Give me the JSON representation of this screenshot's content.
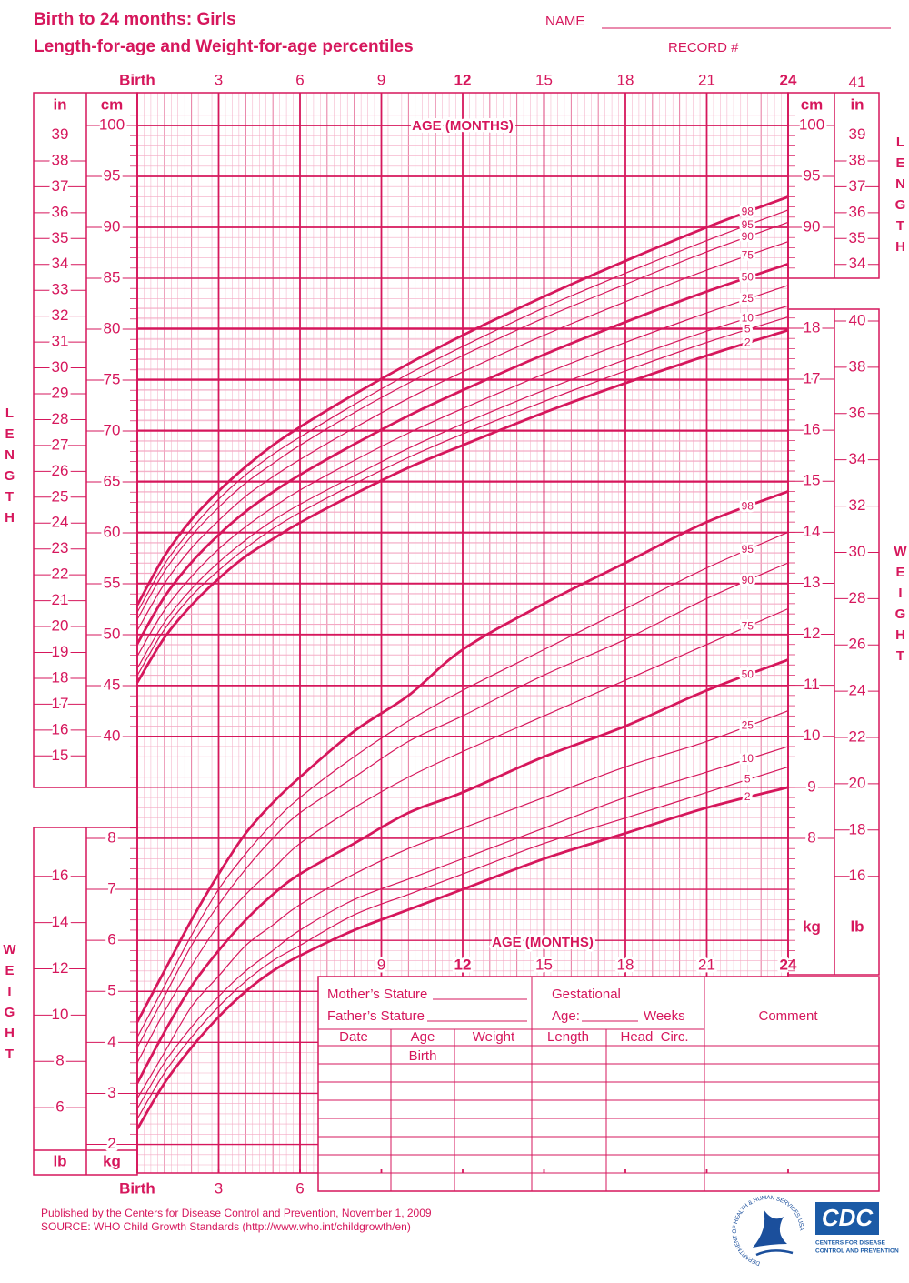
{
  "header": {
    "title": "Birth to 24 months: Girls",
    "subtitle": "Length-for-age and Weight-for-age percentiles",
    "name_label": "NAME",
    "record_label": "RECORD #"
  },
  "chart_data": [
    {
      "type": "line",
      "label": "LENGTH",
      "x_label": "AGE (MONTHS)",
      "y_unit": "cm",
      "y2_unit": "in",
      "color": "#d6175c",
      "x": [
        0,
        1,
        2,
        3,
        4,
        5,
        6,
        8,
        10,
        12,
        15,
        18,
        21,
        24
      ],
      "xlim": [
        0,
        24
      ],
      "xticks": [
        {
          "value": 0,
          "label": "Birth"
        },
        3,
        6,
        9,
        12,
        15,
        18,
        21,
        24
      ],
      "ylim": [
        35,
        103
      ],
      "yticks": [
        40,
        45,
        50,
        55,
        60,
        65,
        70,
        75,
        80,
        85,
        90,
        95,
        100
      ],
      "yticks_right": [
        90,
        95,
        100
      ],
      "y2lim": [
        13.78,
        40.55
      ],
      "y2ticks": [
        15,
        16,
        17,
        18,
        19,
        20,
        21,
        22,
        23,
        24,
        25,
        26,
        27,
        28,
        29,
        30,
        31,
        32,
        33,
        34,
        35,
        36,
        37,
        38,
        39
      ],
      "y2ticks_right": [
        34,
        35,
        36,
        37,
        38,
        39,
        41
      ],
      "series": [
        {
          "name": "98",
          "bold": true,
          "values": [
            52.9,
            57.7,
            61.3,
            64.1,
            66.5,
            68.6,
            70.4,
            73.6,
            76.6,
            79.4,
            83.2,
            86.7,
            90.0,
            93.0
          ]
        },
        {
          "name": "95",
          "bold": false,
          "values": [
            52.2,
            56.9,
            60.4,
            63.3,
            65.7,
            67.7,
            69.4,
            72.6,
            75.6,
            78.3,
            82.1,
            85.5,
            88.7,
            91.7
          ]
        },
        {
          "name": "90",
          "bold": false,
          "values": [
            51.5,
            56.2,
            59.7,
            62.5,
            64.9,
            66.8,
            68.6,
            71.8,
            74.7,
            77.4,
            81.1,
            84.4,
            87.6,
            90.5
          ]
        },
        {
          "name": "75",
          "bold": false,
          "values": [
            50.4,
            55.0,
            58.5,
            61.2,
            63.6,
            65.5,
            67.2,
            70.3,
            73.2,
            75.8,
            79.4,
            82.7,
            85.8,
            88.6
          ]
        },
        {
          "name": "50",
          "bold": true,
          "values": [
            49.1,
            53.7,
            57.1,
            59.8,
            62.1,
            64.0,
            65.7,
            68.7,
            71.5,
            74.0,
            77.5,
            80.7,
            83.7,
            86.4
          ]
        },
        {
          "name": "25",
          "bold": false,
          "values": [
            47.9,
            52.4,
            55.7,
            58.4,
            60.6,
            62.5,
            64.2,
            67.1,
            69.8,
            72.2,
            75.6,
            78.7,
            81.6,
            84.3
          ]
        },
        {
          "name": "10",
          "bold": false,
          "values": [
            46.7,
            51.2,
            54.5,
            57.1,
            59.3,
            61.2,
            62.8,
            65.6,
            68.3,
            70.7,
            74.0,
            77.0,
            79.8,
            82.3
          ]
        },
        {
          "name": "5",
          "bold": false,
          "values": [
            46.0,
            50.5,
            53.8,
            56.3,
            58.5,
            60.4,
            62.0,
            64.8,
            67.4,
            69.7,
            72.9,
            75.9,
            78.7,
            81.2
          ]
        },
        {
          "name": "2",
          "bold": true,
          "values": [
            45.3,
            49.7,
            52.9,
            55.5,
            57.7,
            59.4,
            61.0,
            63.8,
            66.4,
            68.6,
            71.8,
            74.7,
            77.4,
            79.9
          ]
        }
      ]
    },
    {
      "type": "line",
      "label": "WEIGHT",
      "x_label": "AGE (MONTHS)",
      "y_unit": "kg",
      "y2_unit": "lb",
      "color": "#d6175c",
      "x": [
        0,
        1,
        2,
        3,
        4,
        5,
        6,
        8,
        10,
        12,
        15,
        18,
        21,
        24
      ],
      "xlim": [
        0,
        24
      ],
      "xticks": [
        {
          "value": 0,
          "label": "Birth"
        },
        3,
        6,
        9,
        12,
        15,
        18,
        21,
        24
      ],
      "ylim": [
        1.5,
        18.5
      ],
      "yticks": [
        2,
        3,
        4,
        5,
        6,
        7,
        8
      ],
      "yticks_right": [
        8,
        9,
        10,
        11,
        12,
        13,
        14,
        15,
        16,
        17,
        18
      ],
      "y2lim": [
        3.31,
        40.79
      ],
      "y2ticks": [
        6,
        8,
        10,
        12,
        14,
        16
      ],
      "y2ticks_right": [
        16,
        18,
        20,
        22,
        24,
        26,
        28,
        30,
        32,
        34,
        36,
        38,
        40
      ],
      "series": [
        {
          "name": "98",
          "bold": true,
          "values": [
            4.4,
            5.4,
            6.4,
            7.3,
            8.1,
            8.7,
            9.2,
            10.1,
            10.8,
            11.7,
            12.6,
            13.4,
            14.2,
            14.8
          ]
        },
        {
          "name": "95",
          "bold": false,
          "values": [
            4.1,
            5.1,
            6.1,
            7.0,
            7.7,
            8.3,
            8.8,
            9.6,
            10.3,
            10.9,
            11.7,
            12.5,
            13.3,
            14.0
          ]
        },
        {
          "name": "90",
          "bold": false,
          "values": [
            3.9,
            4.9,
            5.9,
            6.7,
            7.4,
            8.0,
            8.5,
            9.2,
            9.9,
            10.4,
            11.2,
            11.9,
            12.7,
            13.4
          ]
        },
        {
          "name": "75",
          "bold": false,
          "values": [
            3.6,
            4.6,
            5.5,
            6.3,
            6.9,
            7.4,
            7.9,
            8.6,
            9.2,
            9.7,
            10.4,
            11.1,
            11.8,
            12.5
          ]
        },
        {
          "name": "50",
          "bold": true,
          "values": [
            3.2,
            4.2,
            5.1,
            5.8,
            6.4,
            6.9,
            7.3,
            7.9,
            8.5,
            8.9,
            9.6,
            10.2,
            10.9,
            11.5
          ]
        },
        {
          "name": "25",
          "bold": false,
          "values": [
            2.9,
            3.8,
            4.7,
            5.3,
            5.9,
            6.3,
            6.7,
            7.3,
            7.8,
            8.2,
            8.8,
            9.4,
            9.9,
            10.5
          ]
        },
        {
          "name": "10",
          "bold": false,
          "values": [
            2.7,
            3.6,
            4.3,
            4.9,
            5.4,
            5.8,
            6.2,
            6.8,
            7.2,
            7.6,
            8.2,
            8.8,
            9.3,
            9.8
          ]
        },
        {
          "name": "5",
          "bold": false,
          "values": [
            2.5,
            3.4,
            4.1,
            4.7,
            5.2,
            5.6,
            5.9,
            6.5,
            6.9,
            7.3,
            7.9,
            8.4,
            8.9,
            9.4
          ]
        },
        {
          "name": "2",
          "bold": true,
          "values": [
            2.3,
            3.2,
            3.9,
            4.5,
            5.0,
            5.4,
            5.7,
            6.2,
            6.6,
            7.0,
            7.6,
            8.1,
            8.6,
            9.0
          ]
        }
      ]
    }
  ],
  "form": {
    "mother_stature": "Mother’s Stature",
    "father_stature": "Father’s Stature",
    "gestational": "Gestational",
    "age": "Age:",
    "weeks": "Weeks",
    "comment": "Comment",
    "columns": [
      "Date",
      "Age",
      "Weight",
      "Length",
      "Head  Circ."
    ],
    "birth_entry": "Birth"
  },
  "footer": {
    "published": "Published by the Centers for Disease Control and Prevention, November 1, 2009",
    "source": "SOURCE:  WHO Child Growth Standards (http://www.who.int/childgrowth/en)"
  },
  "logos": {
    "hhs": "DEPARTMENT OF HEALTH & HUMAN SERVICES·USA",
    "cdc": "CDC",
    "cdc_caption": [
      "CENTERS FOR DISEASE",
      "CONTROL AND PREVENTION"
    ]
  }
}
